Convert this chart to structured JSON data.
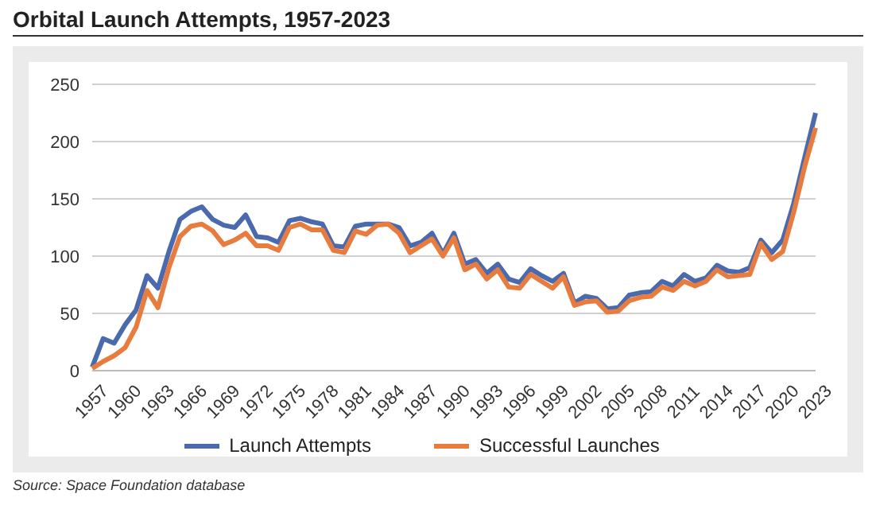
{
  "chart_data": {
    "type": "line",
    "title": "Orbital Launch Attempts, 1957-2023",
    "annotations": [
      "Source: Space Foundation database"
    ],
    "categories": [
      "1957",
      null,
      null,
      "1960",
      null,
      null,
      "1963",
      null,
      null,
      "1966",
      null,
      null,
      "1969",
      null,
      null,
      "1972",
      null,
      null,
      "1975",
      null,
      null,
      "1978",
      null,
      null,
      "1981",
      null,
      null,
      "1984",
      null,
      null,
      "1987",
      null,
      null,
      "1990",
      null,
      null,
      "1993",
      null,
      null,
      "1996",
      null,
      null,
      "1999",
      null,
      null,
      "2002",
      null,
      null,
      "2005",
      null,
      null,
      "2008",
      null,
      null,
      "2011",
      null,
      null,
      "2014",
      null,
      null,
      "2017",
      null,
      null,
      "2020",
      null,
      null,
      "2023"
    ],
    "series": [
      {
        "name": "Launch Attempts",
        "color": "#4a6aad",
        "values": [
          3,
          28,
          24,
          40,
          53,
          83,
          72,
          104,
          132,
          139,
          143,
          132,
          127,
          125,
          136,
          117,
          116,
          112,
          131,
          133,
          130,
          128,
          109,
          108,
          126,
          128,
          128,
          128,
          125,
          109,
          112,
          120,
          102,
          120,
          93,
          97,
          85,
          93,
          80,
          77,
          89,
          83,
          78,
          85,
          59,
          65,
          63,
          54,
          55,
          66,
          68,
          69,
          78,
          74,
          84,
          78,
          81,
          92,
          87,
          86,
          90,
          114,
          103,
          114,
          146,
          186,
          225
        ]
      },
      {
        "name": "Successful Launches",
        "color": "#e87c3e",
        "values": [
          2,
          8,
          13,
          20,
          38,
          70,
          55,
          90,
          117,
          126,
          128,
          122,
          110,
          114,
          120,
          109,
          109,
          105,
          125,
          128,
          123,
          123,
          105,
          103,
          122,
          119,
          127,
          128,
          120,
          103,
          109,
          115,
          100,
          116,
          88,
          93,
          80,
          88,
          73,
          72,
          84,
          78,
          72,
          82,
          57,
          60,
          61,
          51,
          52,
          61,
          64,
          65,
          73,
          70,
          78,
          74,
          78,
          88,
          82,
          83,
          84,
          111,
          97,
          104,
          138,
          178,
          212
        ]
      }
    ],
    "ylim": [
      0,
      250
    ],
    "yticks": [
      0,
      50,
      100,
      150,
      200,
      250
    ],
    "grid": "y",
    "legend": "bottom",
    "marker": "none",
    "line_style": "solid"
  }
}
